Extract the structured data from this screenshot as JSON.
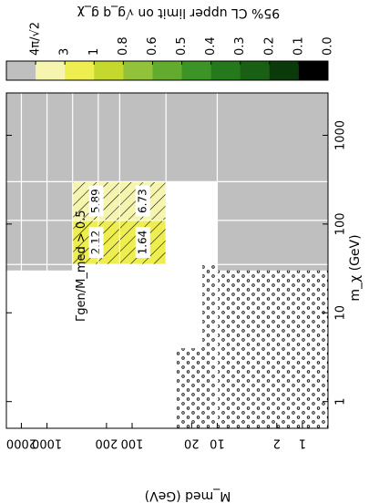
{
  "chart_data": {
    "type": "heatmap",
    "orientation": "rotated 90 degrees clockwise",
    "title": "95% CL upper limit on √g_q g_χ",
    "xlabel": "m_χ (GeV)",
    "ylabel": "M_med (GeV)",
    "x_scale": "log",
    "y_scale": "log",
    "x_ticks": [
      "1",
      "10",
      "100",
      "1000"
    ],
    "y_ticks": [
      "1",
      "2",
      "10",
      "20",
      "100",
      "200",
      "1000",
      "2000"
    ],
    "colorbar": {
      "ticks": [
        "4π/√2",
        "3",
        "1",
        "0.8",
        "0.6",
        "0.5",
        "0.4",
        "0.3",
        "0.2",
        "0.1",
        "0.0"
      ],
      "colors": [
        "#bfbfbf",
        "#f5f5b0",
        "#eeee50",
        "#c4d82e",
        "#92c23a",
        "#63ab2e",
        "#3b9425",
        "#26781c",
        "#195f14",
        "#0b3a0a",
        "#000000"
      ],
      "bins": [
        ">4π/√2",
        "3 - 4π/√2",
        "1 - 3",
        "0.8 - 1",
        "0.6 - 0.8",
        "0.5 - 0.6",
        "0.4 - 0.5",
        "0.3 - 0.4",
        "0.2 - 0.3",
        "0.1 - 0.2",
        "0.0 - 0.1"
      ]
    },
    "annotation": "Γgen/M_med > 0.5",
    "hatch_legend": {
      "hatched_cells": "value shown with hatching",
      "dotted_region": "Γgen/M_med > 0.5"
    },
    "cells": [
      {
        "m_chi": 50,
        "m_med": 300,
        "value": 2.12,
        "label": "2.12",
        "color": "#eeee50",
        "hatched": true
      },
      {
        "m_chi": 50,
        "m_med": 200,
        "value": 1.64,
        "label": "1.64",
        "color": "#eeee50",
        "hatched": true
      },
      {
        "m_chi": 150,
        "m_med": 300,
        "value": 5.89,
        "label": "5.89",
        "color": "#f5f5b0",
        "hatched": true
      },
      {
        "m_chi": 150,
        "m_med": 200,
        "value": 6.73,
        "label": "6.73",
        "color": "#f5f5b0",
        "hatched": true
      }
    ],
    "excluded_regions": [
      {
        "name": "grey-high-mchi",
        "m_chi_range": [
          300,
          3000
        ],
        "m_med_range": [
          0.5,
          3000
        ],
        "color": "#bfbfbf"
      },
      {
        "name": "grey-mid-mchi",
        "m_chi_range": [
          30,
          300
        ],
        "m_med_range": [
          0.5,
          10
        ],
        "color": "#bfbfbf"
      },
      {
        "name": "grey-top-row",
        "m_chi_range": [
          30,
          300
        ],
        "m_med_range": [
          500,
          3000
        ],
        "color": "#bfbfbf"
      }
    ]
  }
}
